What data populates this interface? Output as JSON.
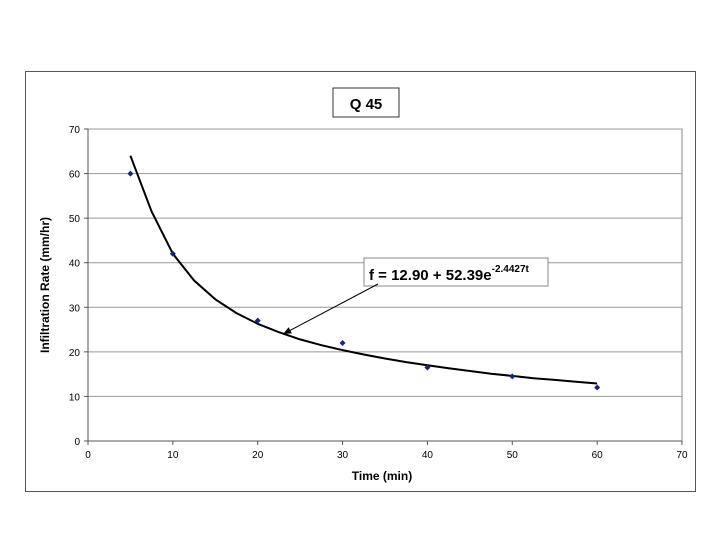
{
  "chart_data": {
    "type": "scatter",
    "title": "Q 45",
    "xlabel": "Time (min)",
    "ylabel": "Infiltration Rate (mm/hr)",
    "xlim": [
      0,
      70
    ],
    "ylim": [
      0,
      70
    ],
    "xticks": [
      0,
      10,
      20,
      30,
      40,
      50,
      60,
      70
    ],
    "yticks": [
      0,
      10,
      20,
      30,
      40,
      50,
      60,
      70
    ],
    "grid": "horizontal",
    "series": [
      {
        "x": [
          5,
          10,
          20,
          30,
          40,
          50,
          60
        ],
        "y": [
          60,
          42,
          27,
          22,
          16.5,
          14.5,
          12
        ]
      }
    ],
    "trend_curve": {
      "x": [
        5,
        7.5,
        10,
        12.5,
        15,
        17.5,
        20,
        22.5,
        25,
        27.5,
        30,
        32.5,
        35,
        37.5,
        40,
        42.5,
        45,
        47.5,
        50,
        52.5,
        55,
        57.5,
        60
      ],
      "y": [
        64,
        51.5,
        42,
        36,
        31.8,
        28.7,
        26.3,
        24.4,
        22.8,
        21.5,
        20.4,
        19.4,
        18.5,
        17.7,
        17,
        16.3,
        15.7,
        15.1,
        14.6,
        14.1,
        13.7,
        13.3,
        12.9
      ]
    },
    "annotation": {
      "prefix": "f = 12.90 + 52.39e",
      "exponent": "-2.4427t",
      "arrow_target": [
        23,
        24
      ]
    },
    "colors": {
      "marker": "#1a237e",
      "curve": "#000000",
      "grid": "#999999",
      "plot_background": "#ffffff"
    }
  }
}
